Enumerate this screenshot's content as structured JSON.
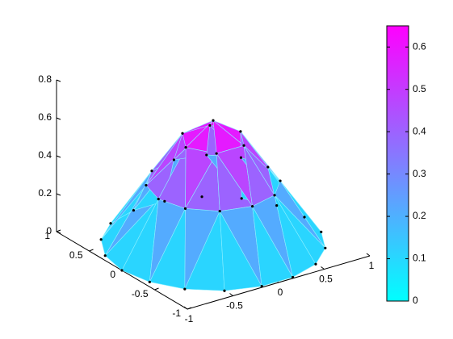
{
  "chart_data": {
    "type": "surface",
    "rings": [
      {
        "x": [
          0
        ],
        "y": [
          0
        ],
        "z": [
          0.65
        ]
      },
      {
        "x": [
          0.3,
          0.15,
          -0.15,
          -0.3,
          -0.15,
          0.15
        ],
        "y": [
          0,
          0.26,
          0.26,
          0,
          -0.26,
          -0.26
        ],
        "z": [
          0.55,
          0.55,
          0.55,
          0.55,
          0.55,
          0.55
        ]
      },
      {
        "x": [
          0.6,
          0.52,
          0.3,
          0,
          -0.3,
          -0.52,
          -0.6,
          -0.52,
          -0.3,
          0,
          0.3,
          0.52
        ],
        "y": [
          0,
          0.3,
          0.52,
          0.6,
          0.52,
          0.3,
          0,
          -0.3,
          -0.52,
          -0.6,
          -0.52,
          -0.3
        ],
        "z": [
          0.32,
          0.32,
          0.32,
          0.32,
          0.32,
          0.32,
          0.32,
          0.32,
          0.32,
          0.32,
          0.32,
          0.32
        ]
      },
      {
        "x": [
          1,
          0.94,
          0.77,
          0.5,
          0.17,
          -0.17,
          -0.5,
          -0.77,
          -0.94,
          -1,
          -0.94,
          -0.77,
          -0.5,
          -0.17,
          0.17,
          0.5,
          0.77,
          0.94
        ],
        "y": [
          0,
          0.34,
          0.64,
          0.87,
          0.98,
          0.98,
          0.87,
          0.64,
          0.34,
          0,
          -0.34,
          -0.64,
          -0.87,
          -0.98,
          -0.98,
          -0.87,
          -0.64,
          -0.34
        ],
        "z": [
          0,
          0,
          0,
          0,
          0,
          0,
          0,
          0,
          0,
          0,
          0,
          0,
          0,
          0,
          0,
          0,
          0,
          0
        ]
      }
    ],
    "xlim": [
      -1,
      1
    ],
    "ylim": [
      -1,
      1
    ],
    "zlim": [
      0,
      0.8
    ],
    "xticks": [
      -1,
      -0.5,
      0,
      0.5,
      1
    ],
    "yticks": [
      -1,
      -0.5,
      0,
      0.5,
      1
    ],
    "zticks": [
      0,
      0.2,
      0.4,
      0.6,
      0.8
    ],
    "clim": [
      0,
      0.65
    ],
    "cticks": [
      0,
      0.1,
      0.2,
      0.3,
      0.4,
      0.5,
      0.6
    ],
    "colormap": [
      "#00ffff",
      "#ff00ff"
    ],
    "edge_color": "#8ff0ff",
    "marker_color": "#000000"
  }
}
